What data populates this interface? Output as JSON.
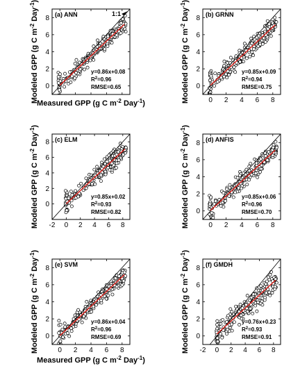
{
  "figure": {
    "ylabel_text": "Modeled GPP (g C m",
    "ylabel_unit": "Day",
    "xlabel_text": "Measured GPP (g C m",
    "xlabel_unit": "Day",
    "exp_neg2": "-2",
    "exp_neg1": "-1",
    "one_to_one_label": "1:1"
  },
  "chart_data": [
    {
      "type": "scatter",
      "title": "(a) ANN",
      "equation": "y=0.86x+0.08",
      "r2_prefix": "R",
      "r2_value": "=0.96",
      "rmse": "RMSE=0.65",
      "slope": 0.86,
      "intercept": 0.08,
      "xlim": [
        -1,
        9
      ],
      "ylim": [
        -1,
        9
      ],
      "xticks": [
        0,
        2,
        4,
        6,
        8
      ],
      "yticks": [
        0,
        2,
        4,
        6,
        8
      ],
      "show_xticklabels": false,
      "show_xlabel": true,
      "show_ylabel": true,
      "show_one_to_one_label": true,
      "seed": 11,
      "xmin_points": -0.2,
      "spread": 0.55
    },
    {
      "type": "scatter",
      "title": "(b) GRNN",
      "equation": "y=0.85x+0.09",
      "r2_prefix": "R",
      "r2_value": "=0.94",
      "rmse": "RMSE=0.75",
      "slope": 0.85,
      "intercept": 0.09,
      "xlim": [
        -1,
        9
      ],
      "ylim": [
        -1,
        9
      ],
      "xticks": [
        0,
        2,
        4,
        6,
        8
      ],
      "yticks": [
        0,
        2,
        4,
        6,
        8
      ],
      "show_xticklabels": true,
      "show_xlabel": false,
      "show_ylabel": true,
      "show_one_to_one_label": false,
      "seed": 23,
      "xmin_points": -0.2,
      "spread": 0.65
    },
    {
      "type": "scatter",
      "title": "(c) ELM",
      "equation": "y=0.85x+0.02",
      "r2_prefix": "R",
      "r2_value": "=0.93",
      "rmse": "RMSE=0.82",
      "slope": 0.85,
      "intercept": 0.02,
      "xlim": [
        -2,
        9
      ],
      "ylim": [
        -2,
        9
      ],
      "xticks": [
        -2,
        0,
        2,
        4,
        6,
        8
      ],
      "yticks": [
        0,
        2,
        4,
        6,
        8
      ],
      "show_xticklabels": true,
      "show_xlabel": false,
      "show_ylabel": true,
      "show_one_to_one_label": false,
      "seed": 37,
      "xmin_points": -0.1,
      "spread": 0.7
    },
    {
      "type": "scatter",
      "title": "(d) ANFIS",
      "equation": "y=0.85x+0.06",
      "r2_prefix": "R",
      "r2_value": "=0.96",
      "rmse": "RMSE=0.70",
      "slope": 0.85,
      "intercept": 0.06,
      "xlim": [
        -1,
        9
      ],
      "ylim": [
        -1,
        9
      ],
      "xticks": [
        0,
        2,
        4,
        6,
        8
      ],
      "yticks": [
        0,
        2,
        4,
        6,
        8
      ],
      "show_xticklabels": true,
      "show_xlabel": false,
      "show_ylabel": true,
      "show_one_to_one_label": false,
      "seed": 41,
      "xmin_points": -0.2,
      "spread": 0.6
    },
    {
      "type": "scatter",
      "title": "(e) SVM",
      "equation": "y=0.86x+0.04",
      "r2_prefix": "R",
      "r2_value": "=0.96",
      "rmse": "RMSE=0.69",
      "slope": 0.86,
      "intercept": 0.04,
      "xlim": [
        -1,
        9
      ],
      "ylim": [
        -1,
        9
      ],
      "xticks": [
        0,
        2,
        4,
        6,
        8
      ],
      "yticks": [
        0,
        2,
        4,
        6,
        8
      ],
      "show_xticklabels": true,
      "show_xlabel": true,
      "show_ylabel": true,
      "show_one_to_one_label": false,
      "seed": 53,
      "xmin_points": -0.2,
      "spread": 0.6
    },
    {
      "type": "scatter",
      "title": "(f) GMDH",
      "equation": "y=0.76x+0.23",
      "r2_prefix": "R",
      "r2_value": "=0.93",
      "rmse": "RMSE=0.91",
      "slope": 0.76,
      "intercept": 0.23,
      "xlim": [
        -2,
        9
      ],
      "ylim": [
        -1,
        9
      ],
      "xticks": [
        -2,
        0,
        2,
        4,
        6,
        8
      ],
      "yticks": [
        0,
        2,
        4,
        6,
        8
      ],
      "show_xticklabels": true,
      "show_xlabel": false,
      "show_ylabel": true,
      "show_one_to_one_label": false,
      "seed": 67,
      "xmin_points": -0.1,
      "spread": 0.75
    }
  ]
}
